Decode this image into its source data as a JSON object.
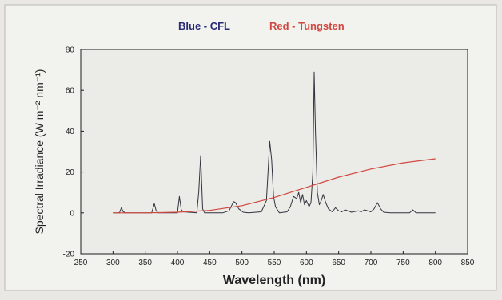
{
  "chart_data": {
    "type": "line",
    "title": "",
    "legend_text": [
      {
        "text": "Blue - CFL",
        "color": "#2a2a78"
      },
      {
        "text": "Red - Tungsten",
        "color": "#d2473f"
      }
    ],
    "xlabel": "Wavelength (nm)",
    "ylabel": "Spectral Irradiance (W m⁻² nm⁻¹)",
    "xlim": [
      250,
      850
    ],
    "ylim": [
      -20,
      80
    ],
    "xticks": [
      "250",
      "300",
      "350",
      "400",
      "450",
      "500",
      "550",
      "600",
      "650",
      "700",
      "750",
      "800",
      "850"
    ],
    "yticks": [
      "-20",
      "0",
      "20",
      "40",
      "60",
      "80"
    ],
    "grid": false,
    "legend_placement": "top-center",
    "series": [
      {
        "label_ref": "Blue - CFL",
        "color": "#333340",
        "x": [
          300,
          310,
          313,
          316,
          320,
          360,
          364,
          367,
          370,
          400,
          403,
          406,
          409,
          430,
          433,
          436,
          439,
          442,
          470,
          480,
          487,
          490,
          495,
          502,
          510,
          530,
          538,
          543,
          546,
          549,
          552,
          558,
          563,
          570,
          575,
          580,
          585,
          588,
          591,
          594,
          597,
          600,
          604,
          607,
          610,
          612,
          614,
          617,
          620,
          623,
          626,
          630,
          634,
          640,
          645,
          650,
          655,
          660,
          670,
          680,
          685,
          690,
          700,
          705,
          710,
          715,
          720,
          730,
          760,
          765,
          770,
          790,
          800
        ],
        "y": [
          0,
          0,
          2.5,
          0.5,
          0,
          0,
          4.5,
          1,
          0,
          0,
          8,
          1.5,
          0.5,
          0,
          10,
          28,
          2,
          0,
          0,
          1,
          5.5,
          5,
          2,
          0.3,
          0,
          0.5,
          6,
          35,
          26,
          8,
          3,
          0,
          0.2,
          0.5,
          3,
          8,
          7,
          10,
          5,
          9,
          4,
          6,
          3,
          5,
          20,
          69,
          40,
          10,
          4,
          6,
          9,
          5,
          2,
          0.5,
          2.5,
          1,
          0.5,
          1.5,
          0.3,
          1,
          0.5,
          1.5,
          0.5,
          2,
          5,
          2,
          0.3,
          0,
          0,
          1.5,
          0,
          0,
          0
        ]
      },
      {
        "label_ref": "Red - Tungsten",
        "color": "#d2473f",
        "x": [
          300,
          350,
          400,
          450,
          500,
          550,
          600,
          650,
          700,
          750,
          800
        ],
        "y": [
          0,
          0,
          0.3,
          1.2,
          3.5,
          7.5,
          12.5,
          17.5,
          21.5,
          24.5,
          26.5
        ]
      }
    ]
  }
}
